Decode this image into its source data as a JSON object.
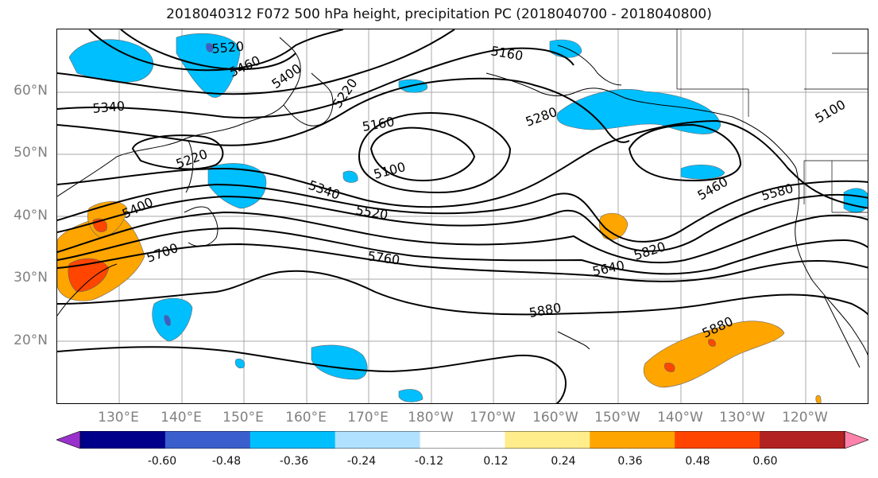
{
  "title": "2018040312 F072 500 hPa height, precipitation PC (2018040700 - 2018040800)",
  "lat_labels": [
    "60°N",
    "50°N",
    "40°N",
    "30°N",
    "20°N"
  ],
  "lon_labels": [
    "130°E",
    "140°E",
    "150°E",
    "160°E",
    "170°E",
    "180°W",
    "170°W",
    "160°W",
    "150°W",
    "140°W",
    "130°W",
    "120°W"
  ],
  "contour_labels": [
    "5520",
    "5460",
    "5400",
    "5220",
    "5160",
    "5340",
    "5160",
    "5100",
    "5280",
    "5100",
    "5220",
    "5340",
    "5400",
    "5520",
    "5460",
    "5580",
    "5700",
    "5760",
    "5640",
    "5820",
    "5880",
    "5880"
  ],
  "colorbar": {
    "colors": [
      "#9932cc",
      "#00008b",
      "#3a5fcd",
      "#00bfff",
      "#b0e2ff",
      "#ffffff",
      "#ffec8b",
      "#ffa500",
      "#ff4500",
      "#b22222",
      "#ff82ab"
    ],
    "tick_labels": [
      "-0.60",
      "-0.48",
      "-0.36",
      "-0.24",
      "-0.12",
      "0.12",
      "0.24",
      "0.36",
      "0.48",
      "0.60"
    ]
  },
  "colors": {
    "grid": "#a8a8a8",
    "contour": "#000000",
    "label_gray": "#808080"
  }
}
